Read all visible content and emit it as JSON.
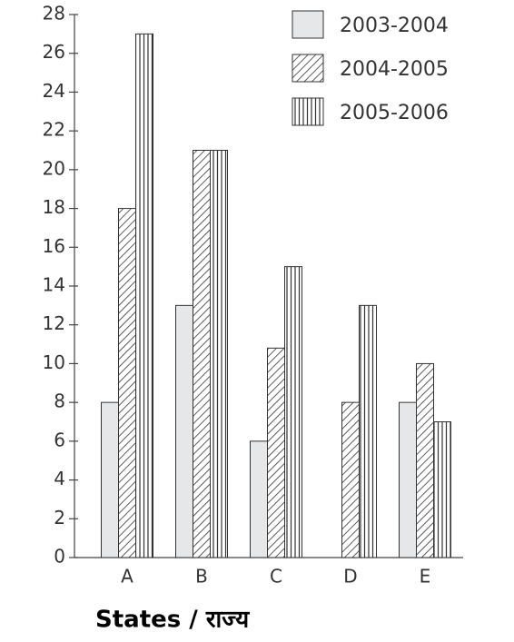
{
  "chart_data": {
    "type": "bar",
    "xlabel": "States / राज्य",
    "categories": [
      "A",
      "B",
      "C",
      "D",
      "E"
    ],
    "series": [
      {
        "name": "2003-2004",
        "color": "#e6e7e8",
        "hatch": "none",
        "values": [
          8,
          13,
          6,
          0,
          8
        ]
      },
      {
        "name": "2004-2005",
        "color": "#333333",
        "hatch": "diagonal",
        "values": [
          18,
          21,
          10.8,
          8,
          10
        ]
      },
      {
        "name": "2005-2006",
        "color": "#333333",
        "hatch": "vertical",
        "values": [
          27,
          21,
          15,
          13,
          7
        ]
      }
    ],
    "ylim": [
      0,
      28
    ],
    "yticks": [
      0,
      2,
      4,
      6,
      8,
      10,
      12,
      14,
      16,
      18,
      20,
      22,
      24,
      26,
      28
    ],
    "legend": "upper right"
  }
}
